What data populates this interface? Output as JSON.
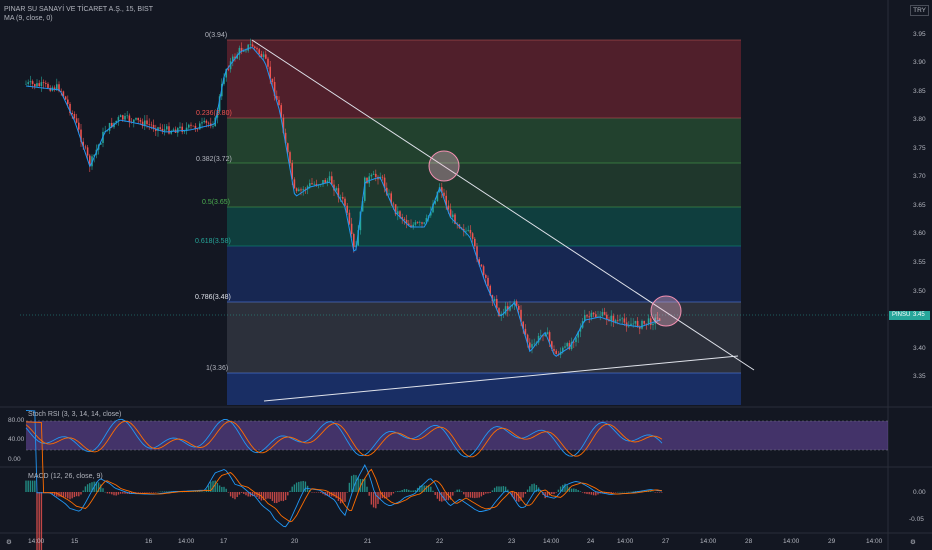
{
  "header": {
    "symbol_title": "PINAR SU SANAYİ VE TİCARET A.Ş., 15, BIST",
    "ma_legend": "MA (9, close, 0)",
    "currency": "TRY"
  },
  "fib_labels": [
    "0(3.94)",
    "0.236(3.80)",
    "0.382(3.72)",
    "0.5(3.65)",
    "0.618(3.58)",
    "0.786(3.48)",
    "1(3.36)"
  ],
  "price_axis": [
    "3.95",
    "3.90",
    "3.85",
    "3.80",
    "3.75",
    "3.70",
    "3.65",
    "3.60",
    "3.55",
    "3.50",
    "3.45",
    "3.40",
    "3.35"
  ],
  "symbol_badge": "PINSU",
  "last_price": "3.45",
  "stoch": {
    "legend": "Stoch RSI (3, 3, 14, 14, close)",
    "axis": [
      "80.00",
      "40.00",
      "0.00"
    ]
  },
  "macd": {
    "legend": "MACD (12, 26, close, 9)",
    "axis": [
      "0.00",
      "-0.05"
    ]
  },
  "time_axis": [
    "14:00",
    "15",
    "16",
    "14:00",
    "17",
    "20",
    "21",
    "22",
    "23",
    "14:00",
    "24",
    "14:00",
    "27",
    "14:00",
    "28",
    "14:00",
    "29",
    "14:00"
  ],
  "colors": {
    "background": "#131722",
    "up": "#26a69a",
    "down": "#ef5350",
    "ma": "#2196f3",
    "stoch_k": "#2196f3",
    "stoch_d": "#ff6d00",
    "stoch_band": "#7e57c2"
  }
}
